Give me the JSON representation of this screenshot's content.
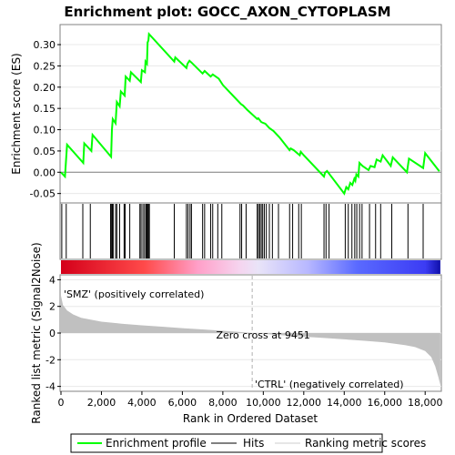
{
  "chart_data": {
    "type": "line",
    "title": "Enrichment plot: GOCC_AXON_CYTOPLASM",
    "panels": {
      "enrichment": {
        "ylabel": "Enrichment score (ES)",
        "ylim": [
          -0.07,
          0.345
        ],
        "yticks": [
          -0.05,
          0.0,
          0.05,
          0.1,
          0.15,
          0.2,
          0.25,
          0.3
        ],
        "ytick_labels": [
          "-0.05",
          "0.00",
          "0.05",
          "0.10",
          "0.15",
          "0.20",
          "0.25",
          "0.30"
        ],
        "series": [
          {
            "name": "Enrichment profile",
            "color": "#00ff00",
            "x": [
              0,
              200,
              300,
              1100,
              1150,
              1500,
              1560,
              2480,
              2520,
              2560,
              2700,
              2760,
              2900,
              2960,
              3150,
              3200,
              3400,
              3460,
              3950,
              4000,
              4150,
              4180,
              4250,
              4280,
              4320,
              4350,
              5600,
              5650,
              6200,
              6250,
              6350,
              6450,
              7000,
              7100,
              7400,
              7500,
              7800,
              8000,
              8900,
              9000,
              9200,
              9700,
              9750,
              9900,
              10000,
              10100,
              10300,
              10500,
              10800,
              11300,
              11350,
              11500,
              11800,
              11850,
              12000,
              13000,
              13050,
              13150,
              14000,
              14100,
              14200,
              14300,
              14400,
              14500,
              14550,
              14600,
              14700,
              14750,
              14900,
              15200,
              15300,
              15500,
              15600,
              15800,
              15900,
              16300,
              16400,
              17100,
              17200,
              17900,
              18000,
              18700
            ],
            "values": [
              0.0,
              -0.01,
              0.065,
              0.022,
              0.068,
              0.05,
              0.088,
              0.036,
              0.1,
              0.125,
              0.115,
              0.165,
              0.155,
              0.19,
              0.18,
              0.225,
              0.215,
              0.235,
              0.212,
              0.24,
              0.235,
              0.26,
              0.255,
              0.305,
              0.31,
              0.325,
              0.26,
              0.27,
              0.245,
              0.255,
              0.262,
              0.258,
              0.232,
              0.238,
              0.225,
              0.23,
              0.22,
              0.205,
              0.16,
              0.157,
              0.147,
              0.125,
              0.127,
              0.118,
              0.116,
              0.114,
              0.104,
              0.097,
              0.082,
              0.052,
              0.056,
              0.052,
              0.04,
              0.048,
              0.04,
              -0.01,
              -0.001,
              0.003,
              -0.05,
              -0.035,
              -0.04,
              -0.025,
              -0.03,
              -0.015,
              -0.02,
              -0.005,
              -0.01,
              0.022,
              0.015,
              0.005,
              0.015,
              0.012,
              0.03,
              0.025,
              0.04,
              0.015,
              0.035,
              0.0,
              0.032,
              0.01,
              0.045,
              0.002
            ]
          }
        ]
      },
      "hits": {
        "name": "Hits",
        "color": "#000000",
        "positions": [
          40,
          260,
          1080,
          1450,
          2450,
          2490,
          2540,
          2580,
          2700,
          2760,
          2900,
          3120,
          3170,
          3400,
          3900,
          3960,
          4050,
          4130,
          4200,
          4250,
          4300,
          4330,
          4370,
          5600,
          6200,
          6280,
          6380,
          6450,
          7000,
          7100,
          7400,
          7500,
          7750,
          7950,
          8850,
          8930,
          9150,
          9700,
          9760,
          9830,
          9900,
          9970,
          10050,
          10150,
          10300,
          10450,
          10750,
          11300,
          11450,
          11750,
          11880,
          13000,
          13100,
          13250,
          14050,
          14200,
          14380,
          14520,
          14620,
          14760,
          14880,
          15250,
          15550,
          15800,
          16350,
          17150,
          17900
        ]
      },
      "ranked_metric": {
        "name": "Ranking metric scores",
        "ylabel": "Ranked list metric (Signal2Noise)",
        "xlabel": "Rank in Ordered Dataset",
        "ylim": [
          -4.3,
          4.3
        ],
        "yticks": [
          -4,
          -2,
          0,
          2,
          4
        ],
        "ytick_labels": [
          "-4",
          "-2",
          "0",
          "2",
          "4"
        ],
        "x": [
          0,
          100,
          300,
          600,
          1000,
          2000,
          3000,
          4000,
          5000,
          6000,
          7000,
          8000,
          9000,
          9451,
          10000,
          11000,
          12000,
          13000,
          14000,
          15000,
          16000,
          17000,
          17500,
          18000,
          18300,
          18500,
          18650,
          18750
        ],
        "values": [
          2.8,
          2.1,
          1.7,
          1.4,
          1.15,
          0.85,
          0.7,
          0.58,
          0.48,
          0.37,
          0.27,
          0.17,
          0.06,
          0.0,
          -0.06,
          -0.17,
          -0.27,
          -0.37,
          -0.47,
          -0.58,
          -0.7,
          -0.9,
          -1.05,
          -1.35,
          -1.8,
          -2.5,
          -3.3,
          -3.9
        ]
      }
    },
    "xlim": [
      0,
      18800
    ],
    "xticks": [
      0,
      2000,
      4000,
      6000,
      8000,
      10000,
      12000,
      14000,
      16000,
      18000
    ],
    "xtick_labels": [
      "0",
      "2,000",
      "4,000",
      "6,000",
      "8,000",
      "10,000",
      "12,000",
      "14,000",
      "16,000",
      "18,000"
    ],
    "zero_cross": 9451,
    "annotations": {
      "positive": "'SMZ' (positively correlated)",
      "negative": "'CTRL' (negatively correlated)",
      "zero_cross": "Zero cross at 9451"
    },
    "colors": {
      "profile": "#00ff00",
      "positive_label": "#cc0000",
      "negative_label": "#0000cc",
      "metric_fill": "#c0c0c0",
      "heat_positive": "#ff0000",
      "heat_mid": "#ffffff",
      "heat_negative": "#0000ff"
    },
    "legend": {
      "position": "bottom",
      "items": [
        {
          "label": "Enrichment profile",
          "color": "#00ff00"
        },
        {
          "label": "Hits",
          "color": "#000000"
        },
        {
          "label": "Ranking metric scores",
          "color": "#cccccc"
        }
      ]
    }
  }
}
